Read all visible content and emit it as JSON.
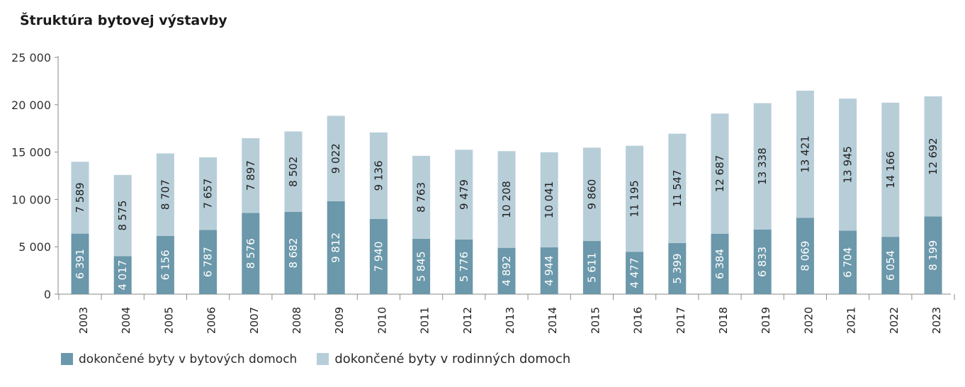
{
  "chart_data": {
    "type": "bar",
    "stacked": true,
    "title": "Štruktúra bytovej výstavby",
    "categories": [
      "2003",
      "2004",
      "2005",
      "2006",
      "2007",
      "2008",
      "2009",
      "2010",
      "2011",
      "2012",
      "2013",
      "2014",
      "2015",
      "2016",
      "2017",
      "2018",
      "2019",
      "2020",
      "2021",
      "2022",
      "2023"
    ],
    "series": [
      {
        "name": "dokončené byty v bytových domoch",
        "color": "#6b98aa",
        "values": [
          6391,
          4017,
          6156,
          6787,
          8576,
          8682,
          9812,
          7940,
          5845,
          5776,
          4892,
          4944,
          5611,
          4477,
          5399,
          6384,
          6833,
          8069,
          6704,
          6054,
          8199
        ],
        "labels": [
          "6 391",
          "4 017",
          "6 156",
          "6 787",
          "8 576",
          "8 682",
          "9 812",
          "7 940",
          "5 845",
          "5 776",
          "4 892",
          "4 944",
          "5 611",
          "4 477",
          "5 399",
          "6 384",
          "6 833",
          "8 069",
          "6 704",
          "6 054",
          "8 199"
        ]
      },
      {
        "name": "dokončené byty v rodinných domoch",
        "color": "#b7ced9",
        "values": [
          7589,
          8575,
          8707,
          7657,
          7897,
          8502,
          9022,
          9136,
          8763,
          9479,
          10208,
          10041,
          9860,
          11195,
          11547,
          12687,
          13338,
          13421,
          13945,
          14166,
          12692
        ],
        "labels": [
          "7 589",
          "8 575",
          "8 707",
          "7 657",
          "7 897",
          "8 502",
          "9 022",
          "9 136",
          "8 763",
          "9 479",
          "10 208",
          "10 041",
          "9 860",
          "11 195",
          "11 547",
          "12 687",
          "13 338",
          "13 421",
          "13 945",
          "14 166",
          "12 692"
        ]
      }
    ],
    "yticks": [
      0,
      5000,
      10000,
      15000,
      20000,
      25000
    ],
    "ytick_labels": [
      "0",
      "5 000",
      "10 000",
      "15 000",
      "20 000",
      "25 000"
    ],
    "ylim": [
      0,
      25000
    ],
    "xlabel": "",
    "ylabel": "",
    "grid": false,
    "legend_position": "bottom-left"
  }
}
